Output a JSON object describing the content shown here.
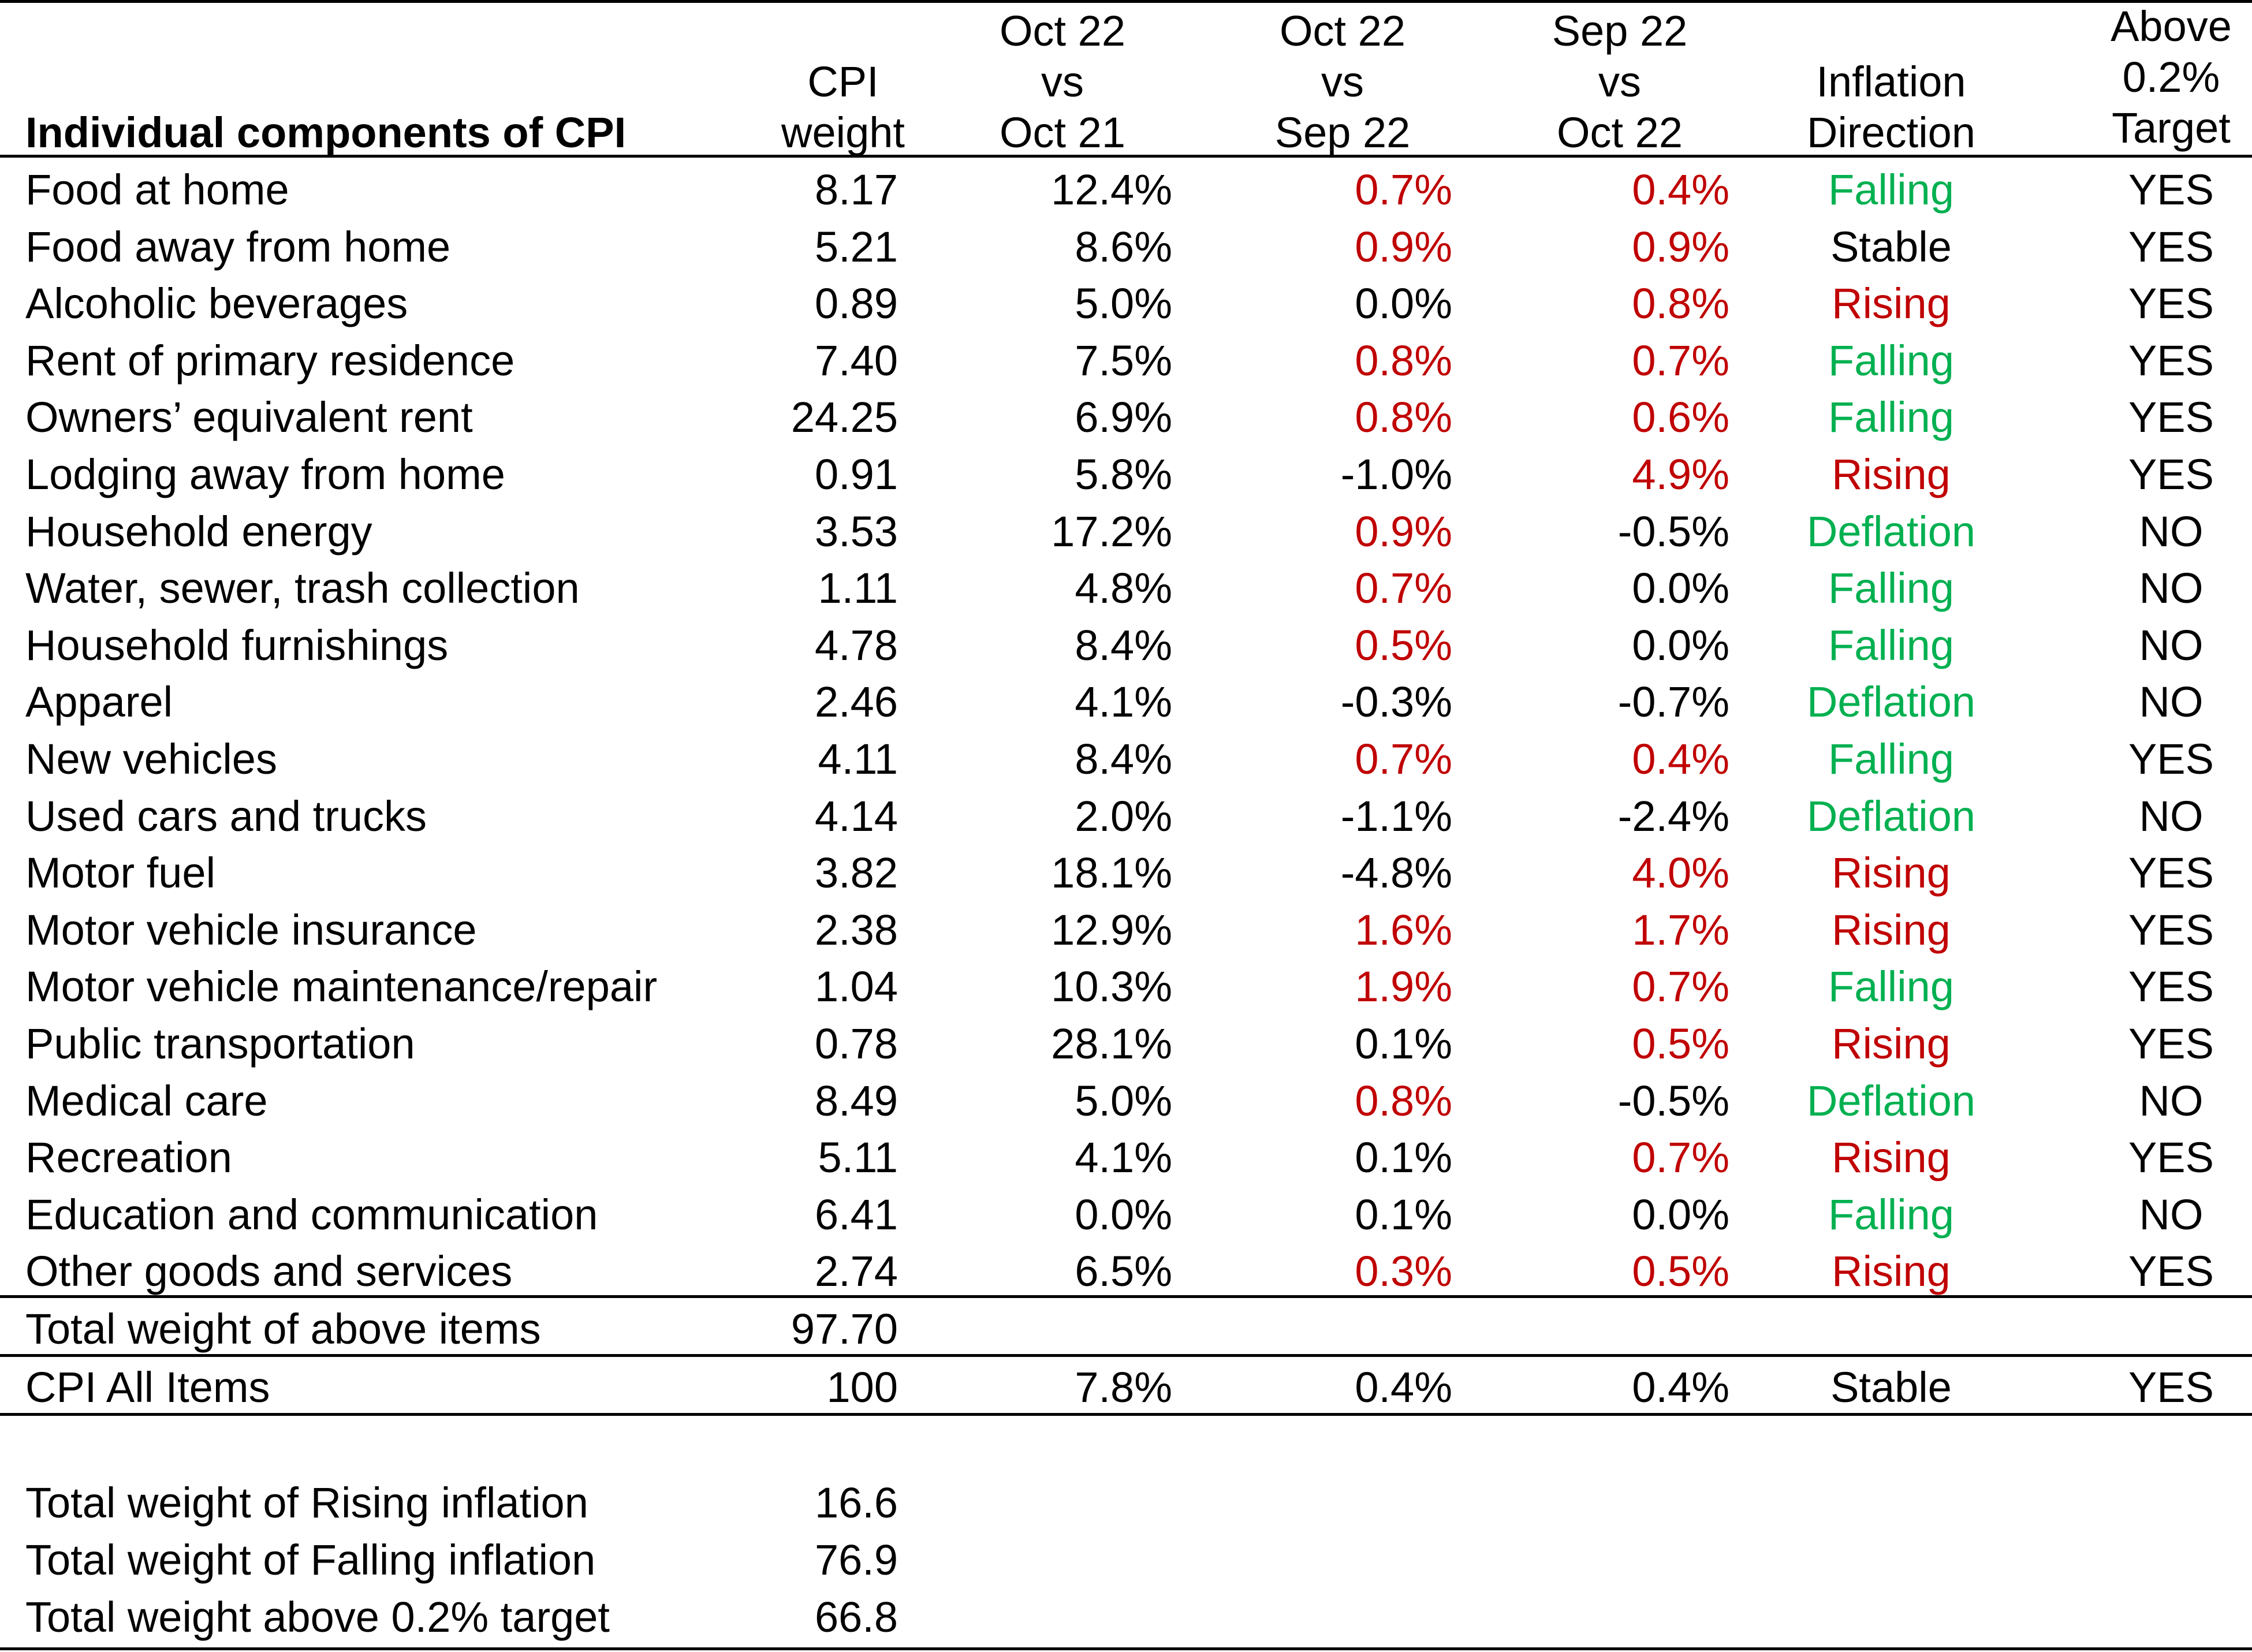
{
  "colors": {
    "red": "#c00000",
    "green": "#00b050",
    "black": "#000000"
  },
  "header": {
    "title": "Individual components of CPI",
    "weight": [
      "CPI",
      "weight"
    ],
    "yoy": [
      "Oct 22",
      "vs",
      "Oct 21"
    ],
    "mom1": [
      "Oct 22",
      "vs",
      "Sep 22"
    ],
    "mom2": [
      "Sep 22",
      "vs",
      "Oct 22"
    ],
    "direction": [
      "Inflation",
      "Direction"
    ],
    "target": [
      "Above",
      "0.2%",
      "Target"
    ]
  },
  "rows": [
    {
      "label": "Food at home",
      "weight": "8.17",
      "yoy": "12.4%",
      "mom1": "0.7%",
      "mom1_color": "red",
      "mom2": "0.4%",
      "mom2_color": "red",
      "direction": "Falling",
      "direction_color": "green",
      "target": "YES"
    },
    {
      "label": "Food away from home",
      "weight": "5.21",
      "yoy": "8.6%",
      "mom1": "0.9%",
      "mom1_color": "red",
      "mom2": "0.9%",
      "mom2_color": "red",
      "direction": "Stable",
      "direction_color": "black",
      "target": "YES"
    },
    {
      "label": "Alcoholic beverages",
      "weight": "0.89",
      "yoy": "5.0%",
      "mom1": "0.0%",
      "mom1_color": "black",
      "mom2": "0.8%",
      "mom2_color": "red",
      "direction": "Rising",
      "direction_color": "red",
      "target": "YES"
    },
    {
      "label": "Rent of primary residence",
      "weight": "7.40",
      "yoy": "7.5%",
      "mom1": "0.8%",
      "mom1_color": "red",
      "mom2": "0.7%",
      "mom2_color": "red",
      "direction": "Falling",
      "direction_color": "green",
      "target": "YES"
    },
    {
      "label": "Owners’ equivalent rent",
      "weight": "24.25",
      "yoy": "6.9%",
      "mom1": "0.8%",
      "mom1_color": "red",
      "mom2": "0.6%",
      "mom2_color": "red",
      "direction": "Falling",
      "direction_color": "green",
      "target": "YES"
    },
    {
      "label": "Lodging away from home",
      "weight": "0.91",
      "yoy": "5.8%",
      "mom1": "-1.0%",
      "mom1_color": "black",
      "mom2": "4.9%",
      "mom2_color": "red",
      "direction": "Rising",
      "direction_color": "red",
      "target": "YES"
    },
    {
      "label": "Household energy",
      "weight": "3.53",
      "yoy": "17.2%",
      "mom1": "0.9%",
      "mom1_color": "red",
      "mom2": "-0.5%",
      "mom2_color": "black",
      "direction": "Deflation",
      "direction_color": "green",
      "target": "NO"
    },
    {
      "label": "Water, sewer, trash collection",
      "weight": "1.11",
      "yoy": "4.8%",
      "mom1": "0.7%",
      "mom1_color": "red",
      "mom2": "0.0%",
      "mom2_color": "black",
      "direction": "Falling",
      "direction_color": "green",
      "target": "NO"
    },
    {
      "label": "Household furnishings",
      "weight": "4.78",
      "yoy": "8.4%",
      "mom1": "0.5%",
      "mom1_color": "red",
      "mom2": "0.0%",
      "mom2_color": "black",
      "direction": "Falling",
      "direction_color": "green",
      "target": "NO"
    },
    {
      "label": "Apparel",
      "weight": "2.46",
      "yoy": "4.1%",
      "mom1": "-0.3%",
      "mom1_color": "black",
      "mom2": "-0.7%",
      "mom2_color": "black",
      "direction": "Deflation",
      "direction_color": "green",
      "target": "NO"
    },
    {
      "label": "New vehicles",
      "weight": "4.11",
      "yoy": "8.4%",
      "mom1": "0.7%",
      "mom1_color": "red",
      "mom2": "0.4%",
      "mom2_color": "red",
      "direction": "Falling",
      "direction_color": "green",
      "target": "YES"
    },
    {
      "label": "Used cars and trucks",
      "weight": "4.14",
      "yoy": "2.0%",
      "mom1": "-1.1%",
      "mom1_color": "black",
      "mom2": "-2.4%",
      "mom2_color": "black",
      "direction": "Deflation",
      "direction_color": "green",
      "target": "NO"
    },
    {
      "label": "Motor fuel",
      "weight": "3.82",
      "yoy": "18.1%",
      "mom1": "-4.8%",
      "mom1_color": "black",
      "mom2": "4.0%",
      "mom2_color": "red",
      "direction": "Rising",
      "direction_color": "red",
      "target": "YES"
    },
    {
      "label": "Motor vehicle insurance",
      "weight": "2.38",
      "yoy": "12.9%",
      "mom1": "1.6%",
      "mom1_color": "red",
      "mom2": "1.7%",
      "mom2_color": "red",
      "direction": "Rising",
      "direction_color": "red",
      "target": "YES"
    },
    {
      "label": "Motor vehicle maintenance/repair",
      "weight": "1.04",
      "yoy": "10.3%",
      "mom1": "1.9%",
      "mom1_color": "red",
      "mom2": "0.7%",
      "mom2_color": "red",
      "direction": "Falling",
      "direction_color": "green",
      "target": "YES"
    },
    {
      "label": "Public transportation",
      "weight": "0.78",
      "yoy": "28.1%",
      "mom1": "0.1%",
      "mom1_color": "black",
      "mom2": "0.5%",
      "mom2_color": "red",
      "direction": "Rising",
      "direction_color": "red",
      "target": "YES"
    },
    {
      "label": "Medical care",
      "weight": "8.49",
      "yoy": "5.0%",
      "mom1": "0.8%",
      "mom1_color": "red",
      "mom2": "-0.5%",
      "mom2_color": "black",
      "direction": "Deflation",
      "direction_color": "green",
      "target": "NO"
    },
    {
      "label": "Recreation",
      "weight": "5.11",
      "yoy": "4.1%",
      "mom1": "0.1%",
      "mom1_color": "black",
      "mom2": "0.7%",
      "mom2_color": "red",
      "direction": "Rising",
      "direction_color": "red",
      "target": "YES"
    },
    {
      "label": "Education and communication",
      "weight": "6.41",
      "yoy": "0.0%",
      "mom1": "0.1%",
      "mom1_color": "black",
      "mom2": "0.0%",
      "mom2_color": "black",
      "direction": "Falling",
      "direction_color": "green",
      "target": "NO"
    },
    {
      "label": "Other goods and services",
      "weight": "2.74",
      "yoy": "6.5%",
      "mom1": "0.3%",
      "mom1_color": "red",
      "mom2": "0.5%",
      "mom2_color": "red",
      "direction": "Rising",
      "direction_color": "red",
      "target": "YES"
    }
  ],
  "total_row": {
    "label": "Total weight of above items",
    "weight": "97.70"
  },
  "all_items_row": {
    "label": "CPI All Items",
    "weight": "100",
    "yoy": "7.8%",
    "mom1": "0.4%",
    "mom2": "0.4%",
    "direction": "Stable",
    "target": "YES"
  },
  "summary": [
    {
      "label": "Total weight of Rising inflation",
      "value": "16.6"
    },
    {
      "label": "Total weight of Falling inflation",
      "value": "76.9"
    },
    {
      "label": "Total weight above 0.2% target",
      "value": "66.8"
    }
  ]
}
